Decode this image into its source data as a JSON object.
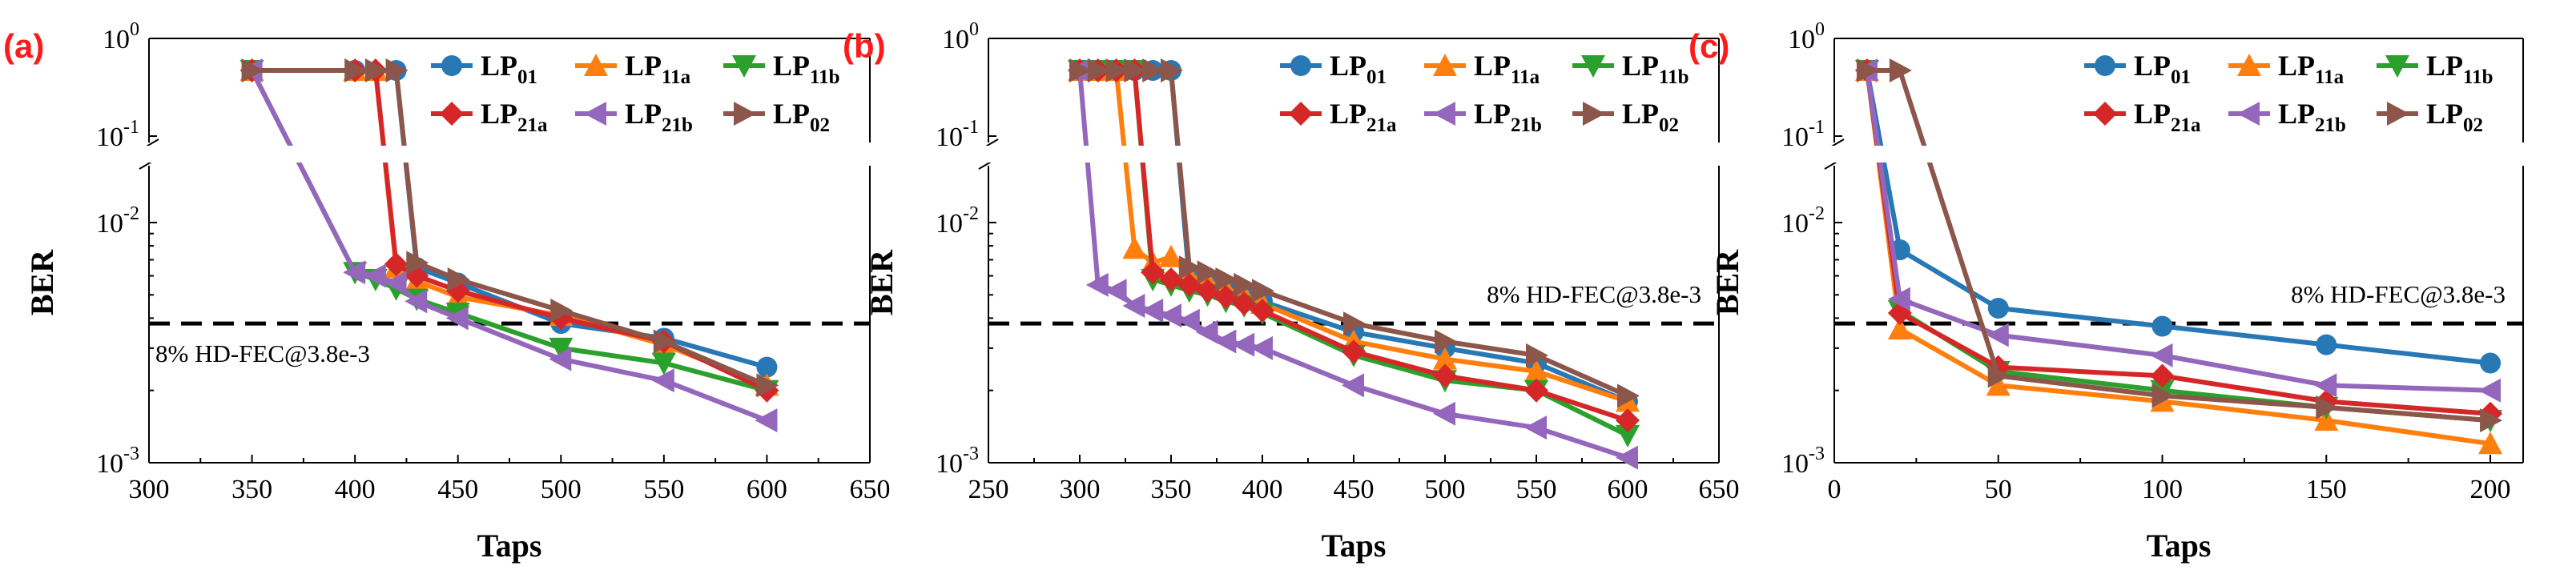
{
  "chart_data": [
    {
      "type": "line",
      "panel_label": "(a)",
      "title": "",
      "xlabel": "Taps",
      "ylabel": "BER",
      "y_scale": "log-with-break",
      "xlim": [
        300,
        650
      ],
      "xticks": [
        "300",
        "350",
        "400",
        "450",
        "500",
        "550",
        "600",
        "650"
      ],
      "xtick_values": [
        300,
        350,
        400,
        450,
        500,
        550,
        600,
        650
      ],
      "ylim": [
        0.001,
        1
      ],
      "y_break": [
        0.1,
        0.02
      ],
      "yticks": [
        {
          "base": "10",
          "exp": "0",
          "value": 1
        },
        {
          "base": "10",
          "exp": "-1",
          "value": 0.1
        },
        {
          "base": "10",
          "exp": "-2",
          "value": 0.01
        },
        {
          "base": "10",
          "exp": "-3",
          "value": 0.001
        }
      ],
      "threshold": {
        "label": "8% HD-FEC@3.8e-3",
        "value": 0.0038,
        "label_position": "below-left"
      },
      "legend_position": "top-right",
      "series": [
        {
          "name": "LP01",
          "base": "LP",
          "sub": "01",
          "color": "#2878b5",
          "marker": "circle",
          "x": [
            350,
            400,
            420,
            430,
            450,
            500,
            550,
            600
          ],
          "y": [
            0.47,
            0.47,
            0.47,
            0.0065,
            0.0056,
            0.0038,
            0.0033,
            0.0025
          ]
        },
        {
          "name": "LP11a",
          "base": "LP",
          "sub": "11a",
          "color": "#ff7f0e",
          "marker": "triangle-up",
          "x": [
            350,
            400,
            410,
            420,
            430,
            450,
            500,
            550,
            600
          ],
          "y": [
            0.47,
            0.47,
            0.47,
            0.0065,
            0.0057,
            0.0049,
            0.0041,
            0.0031,
            0.0021
          ]
        },
        {
          "name": "LP11b",
          "base": "LP",
          "sub": "11b",
          "color": "#2ca02c",
          "marker": "triangle-down",
          "x": [
            350,
            400,
            410,
            420,
            430,
            450,
            500,
            550,
            600
          ],
          "y": [
            0.47,
            0.0062,
            0.0058,
            0.0053,
            0.0048,
            0.0042,
            0.003,
            0.0026,
            0.002
          ]
        },
        {
          "name": "LP21a",
          "base": "LP",
          "sub": "21a",
          "color": "#d62728",
          "marker": "diamond",
          "x": [
            350,
            400,
            410,
            420,
            430,
            450,
            500,
            550,
            600
          ],
          "y": [
            0.47,
            0.47,
            0.47,
            0.0067,
            0.006,
            0.0052,
            0.004,
            0.0032,
            0.002
          ]
        },
        {
          "name": "LP21b",
          "base": "LP",
          "sub": "21b",
          "color": "#9467bd",
          "marker": "triangle-left",
          "x": [
            350,
            400,
            410,
            420,
            430,
            450,
            500,
            550,
            600
          ],
          "y": [
            0.47,
            0.0062,
            0.006,
            0.0056,
            0.0047,
            0.004,
            0.0027,
            0.0022,
            0.0015
          ]
        },
        {
          "name": "LP02",
          "base": "LP",
          "sub": "02",
          "color": "#8c564b",
          "marker": "triangle-right",
          "x": [
            350,
            400,
            410,
            420,
            430,
            450,
            500,
            550,
            600
          ],
          "y": [
            0.47,
            0.47,
            0.47,
            0.47,
            0.0068,
            0.0058,
            0.0043,
            0.0032,
            0.0021
          ]
        }
      ]
    },
    {
      "type": "line",
      "panel_label": "(b)",
      "title": "",
      "xlabel": "Taps",
      "ylabel": "BER",
      "y_scale": "log-with-break",
      "xlim": [
        250,
        650
      ],
      "xticks": [
        "250",
        "300",
        "350",
        "400",
        "450",
        "500",
        "550",
        "600",
        "650"
      ],
      "xtick_values": [
        250,
        300,
        350,
        400,
        450,
        500,
        550,
        600,
        650
      ],
      "ylim": [
        0.001,
        1
      ],
      "y_break": [
        0.1,
        0.02
      ],
      "yticks": [
        {
          "base": "10",
          "exp": "0",
          "value": 1
        },
        {
          "base": "10",
          "exp": "-1",
          "value": 0.1
        },
        {
          "base": "10",
          "exp": "-2",
          "value": 0.01
        },
        {
          "base": "10",
          "exp": "-3",
          "value": 0.001
        }
      ],
      "threshold": {
        "label": "8% HD-FEC@3.8e-3",
        "value": 0.0038,
        "label_position": "above-right"
      },
      "legend_position": "top-right",
      "series": [
        {
          "name": "LP01",
          "base": "LP",
          "sub": "01",
          "color": "#2878b5",
          "marker": "circle",
          "x": [
            300,
            310,
            320,
            330,
            340,
            350,
            360,
            370,
            380,
            390,
            400,
            450,
            500,
            550,
            600
          ],
          "y": [
            0.47,
            0.47,
            0.47,
            0.47,
            0.47,
            0.47,
            0.0058,
            0.0055,
            0.0052,
            0.0049,
            0.0047,
            0.0035,
            0.003,
            0.0026,
            0.0018
          ]
        },
        {
          "name": "LP11a",
          "base": "LP",
          "sub": "11a",
          "color": "#ff7f0e",
          "marker": "triangle-up",
          "x": [
            300,
            310,
            320,
            330,
            340,
            350,
            360,
            370,
            380,
            390,
            400,
            450,
            500,
            550,
            600
          ],
          "y": [
            0.47,
            0.47,
            0.47,
            0.0078,
            0.0068,
            0.0072,
            0.006,
            0.0057,
            0.0053,
            0.005,
            0.0046,
            0.0032,
            0.0027,
            0.0024,
            0.0018
          ]
        },
        {
          "name": "LP11b",
          "base": "LP",
          "sub": "11b",
          "color": "#2ca02c",
          "marker": "triangle-down",
          "x": [
            300,
            310,
            320,
            330,
            340,
            350,
            360,
            370,
            380,
            390,
            400,
            450,
            500,
            550,
            600
          ],
          "y": [
            0.47,
            0.47,
            0.47,
            0.47,
            0.0058,
            0.0055,
            0.0052,
            0.005,
            0.0047,
            0.0045,
            0.0042,
            0.0028,
            0.0022,
            0.002,
            0.0013
          ]
        },
        {
          "name": "LP21a",
          "base": "LP",
          "sub": "21a",
          "color": "#d62728",
          "marker": "diamond",
          "x": [
            300,
            310,
            320,
            330,
            340,
            350,
            360,
            370,
            380,
            390,
            400,
            450,
            500,
            550,
            600
          ],
          "y": [
            0.47,
            0.47,
            0.47,
            0.47,
            0.0062,
            0.0058,
            0.0055,
            0.0052,
            0.0049,
            0.0046,
            0.0043,
            0.0029,
            0.0023,
            0.002,
            0.0015
          ]
        },
        {
          "name": "LP21b",
          "base": "LP",
          "sub": "21b",
          "color": "#9467bd",
          "marker": "triangle-left",
          "x": [
            300,
            310,
            320,
            330,
            340,
            350,
            360,
            370,
            380,
            390,
            400,
            450,
            500,
            550,
            600
          ],
          "y": [
            0.47,
            0.0055,
            0.0052,
            0.0045,
            0.0043,
            0.0041,
            0.0039,
            0.0035,
            0.0032,
            0.0031,
            0.003,
            0.0021,
            0.0016,
            0.0014,
            0.00105
          ]
        },
        {
          "name": "LP02",
          "base": "LP",
          "sub": "02",
          "color": "#8c564b",
          "marker": "triangle-right",
          "x": [
            300,
            310,
            320,
            330,
            340,
            350,
            360,
            370,
            380,
            390,
            400,
            450,
            500,
            550,
            600
          ],
          "y": [
            0.47,
            0.47,
            0.47,
            0.47,
            0.47,
            0.47,
            0.0065,
            0.0062,
            0.0058,
            0.0055,
            0.0052,
            0.0038,
            0.0032,
            0.0028,
            0.0019
          ]
        }
      ]
    },
    {
      "type": "line",
      "panel_label": "(c)",
      "title": "",
      "xlabel": "Taps",
      "ylabel": "BER",
      "y_scale": "log-with-break",
      "xlim": [
        0,
        210
      ],
      "xticks": [
        "0",
        "50",
        "100",
        "150",
        "200"
      ],
      "xtick_values": [
        0,
        50,
        100,
        150,
        200
      ],
      "ylim": [
        0.001,
        1
      ],
      "y_break": [
        0.1,
        0.02
      ],
      "yticks": [
        {
          "base": "10",
          "exp": "0",
          "value": 1
        },
        {
          "base": "10",
          "exp": "-1",
          "value": 0.1
        },
        {
          "base": "10",
          "exp": "-2",
          "value": 0.01
        },
        {
          "base": "10",
          "exp": "-3",
          "value": 0.001
        }
      ],
      "threshold": {
        "label": "8% HD-FEC@3.8e-3",
        "value": 0.0038,
        "label_position": "above-right"
      },
      "legend_position": "top-right",
      "series": [
        {
          "name": "LP01",
          "base": "LP",
          "sub": "01",
          "color": "#2878b5",
          "marker": "circle",
          "x": [
            10,
            20,
            50,
            100,
            150,
            200
          ],
          "y": [
            0.47,
            0.0077,
            0.0044,
            0.0037,
            0.0031,
            0.0026
          ]
        },
        {
          "name": "LP11a",
          "base": "LP",
          "sub": "11a",
          "color": "#ff7f0e",
          "marker": "triangle-up",
          "x": [
            10,
            20,
            50,
            100,
            150,
            200
          ],
          "y": [
            0.47,
            0.0036,
            0.0021,
            0.0018,
            0.0015,
            0.0012
          ]
        },
        {
          "name": "LP11b",
          "base": "LP",
          "sub": "11b",
          "color": "#2ca02c",
          "marker": "triangle-down",
          "x": [
            10,
            20,
            50,
            100,
            150,
            200
          ],
          "y": [
            0.47,
            0.0043,
            0.0024,
            0.002,
            0.0017,
            0.0015
          ]
        },
        {
          "name": "LP21a",
          "base": "LP",
          "sub": "21a",
          "color": "#d62728",
          "marker": "diamond",
          "x": [
            10,
            20,
            50,
            100,
            150,
            200
          ],
          "y": [
            0.47,
            0.0042,
            0.0025,
            0.0023,
            0.0018,
            0.0016
          ]
        },
        {
          "name": "LP21b",
          "base": "LP",
          "sub": "21b",
          "color": "#9467bd",
          "marker": "triangle-left",
          "x": [
            10,
            20,
            50,
            100,
            150,
            200
          ],
          "y": [
            0.47,
            0.0048,
            0.0034,
            0.0028,
            0.0021,
            0.002
          ]
        },
        {
          "name": "LP02",
          "base": "LP",
          "sub": "02",
          "color": "#8c564b",
          "marker": "triangle-right",
          "x": [
            10,
            20,
            50,
            100,
            150,
            200
          ],
          "y": [
            0.47,
            0.47,
            0.0023,
            0.0019,
            0.0017,
            0.0015
          ]
        }
      ]
    }
  ]
}
